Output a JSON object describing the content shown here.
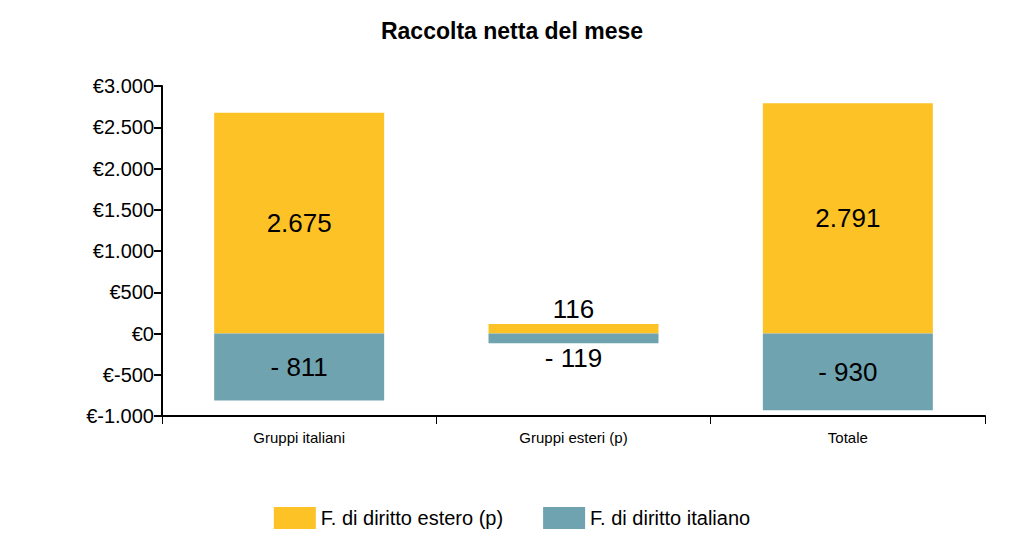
{
  "chart_data": {
    "type": "bar",
    "title": "Raccolta netta del mese",
    "categories": [
      "Gruppi italiani",
      "Gruppi esteri (p)",
      "Totale"
    ],
    "series": [
      {
        "name": "F. di diritto estero (p)",
        "color": "#fdc326",
        "values": [
          2675,
          116,
          2791
        ],
        "value_labels": [
          "2.675",
          "116",
          "2.791"
        ]
      },
      {
        "name": "F. di diritto italiano",
        "color": "#6fa3b0",
        "values": [
          -811,
          -119,
          -930
        ],
        "value_labels": [
          "- 811",
          "- 119",
          "- 930"
        ]
      }
    ],
    "ylim": [
      -1000,
      3000
    ],
    "yticks": [
      {
        "value": -1000,
        "label": "€-1.000"
      },
      {
        "value": -500,
        "label": "€-500"
      },
      {
        "value": 0,
        "label": "€0"
      },
      {
        "value": 500,
        "label": "€500"
      },
      {
        "value": 1000,
        "label": "€1.000"
      },
      {
        "value": 1500,
        "label": "€1.500"
      },
      {
        "value": 2000,
        "label": "€2.000"
      },
      {
        "value": 2500,
        "label": "€2.500"
      },
      {
        "value": 3000,
        "label": "€3.000"
      }
    ],
    "stacked": true,
    "data_labels": true,
    "grid": false,
    "legend": "bottom"
  }
}
